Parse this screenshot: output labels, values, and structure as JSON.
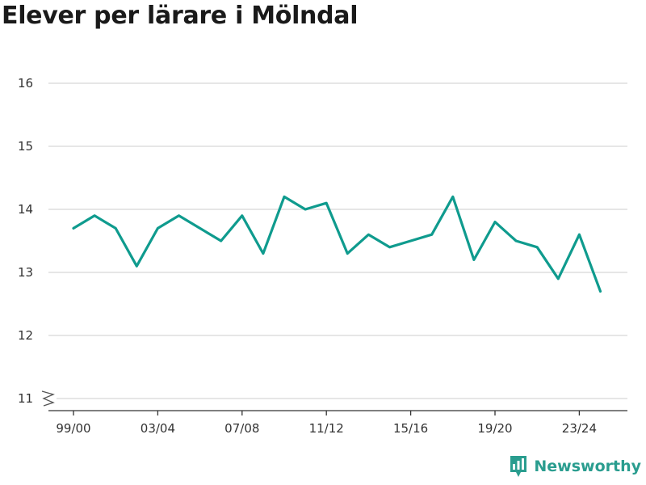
{
  "title": "Elever per lärare i Mölndal",
  "brand": "Newsworthy",
  "colors": {
    "line": "#0f9b8e",
    "grid": "#dddddd",
    "axis": "#333333",
    "brand": "#2a9d8f"
  },
  "chart_data": {
    "type": "line",
    "title": "Elever per lärare i Mölndal",
    "xlabel": "",
    "ylabel": "",
    "categories": [
      "99/00",
      "00/01",
      "01/02",
      "02/03",
      "03/04",
      "04/05",
      "05/06",
      "06/07",
      "07/08",
      "08/09",
      "09/10",
      "10/11",
      "11/12",
      "12/13",
      "13/14",
      "14/15",
      "15/16",
      "16/17",
      "17/18",
      "18/19",
      "19/20",
      "20/21",
      "21/22",
      "22/23",
      "23/24",
      "24/25"
    ],
    "x_tick_labels": [
      "99/00",
      "03/04",
      "07/08",
      "11/12",
      "15/16",
      "19/20",
      "23/24"
    ],
    "series": [
      {
        "values": [
          13.7,
          13.9,
          13.7,
          13.1,
          13.7,
          13.9,
          13.7,
          13.5,
          13.9,
          13.3,
          14.2,
          14.0,
          14.1,
          13.3,
          13.6,
          13.4,
          13.5,
          13.6,
          14.2,
          13.2,
          13.8,
          13.5,
          13.4,
          12.9,
          13.6,
          12.7
        ]
      }
    ],
    "y_ticks": [
      11,
      12,
      13,
      14,
      15,
      16
    ],
    "ylim": [
      11,
      16
    ],
    "y_axis_break": true,
    "grid": true,
    "legend": "none"
  }
}
